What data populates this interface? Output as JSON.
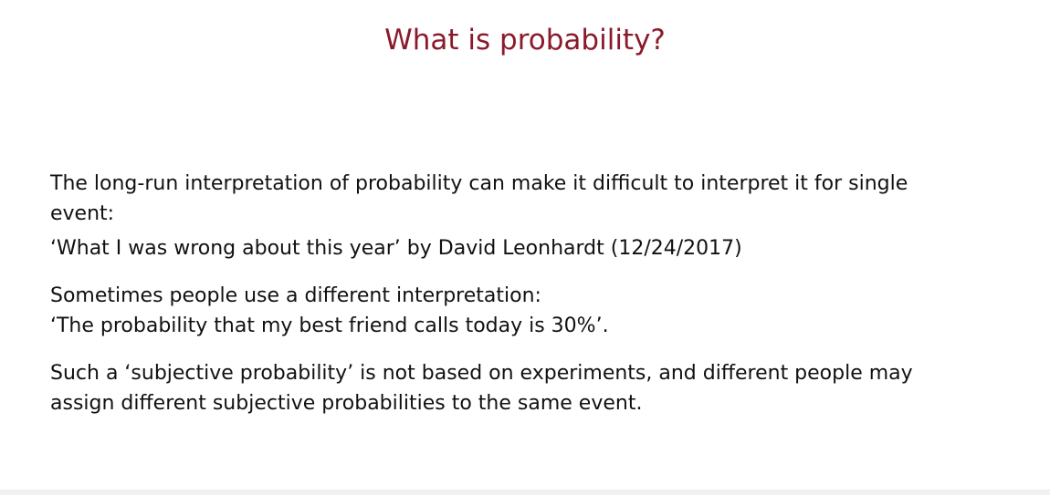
{
  "slide": {
    "title": "What is probability?",
    "blocks": [
      {
        "lines": [
          "The long-run interpretation of probability can make it difficult to interpret it for single",
          "event:"
        ]
      },
      {
        "lines": [
          "‘What I was wrong about this year’ by David Leonhardt (12/24/2017)"
        ]
      },
      {
        "lines": [
          "Sometimes people use a different interpretation:",
          "‘The probability that my best friend calls today is 30%’."
        ]
      },
      {
        "lines": [
          "Such a ‘subjective probability’ is not based on experiments, and different people may",
          "assign different subjective probabilities to the same event."
        ]
      }
    ]
  }
}
